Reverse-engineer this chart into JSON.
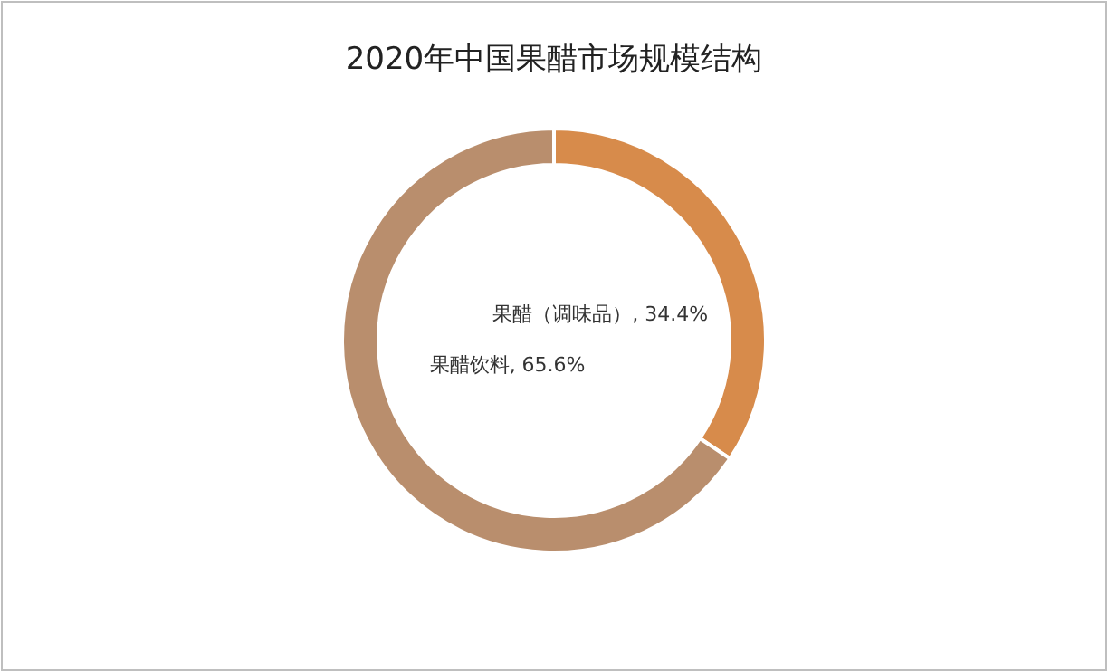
{
  "chart_data": {
    "type": "donut",
    "title": "2020年中国果醋市场规模结构",
    "categories": [
      "果醋（调味品）",
      "果醋饮料"
    ],
    "values": [
      34.4,
      65.6
    ],
    "colors": [
      "#d78b4b",
      "#b98e6d"
    ],
    "value_labels": [
      "34.4%",
      "65.6%"
    ]
  }
}
